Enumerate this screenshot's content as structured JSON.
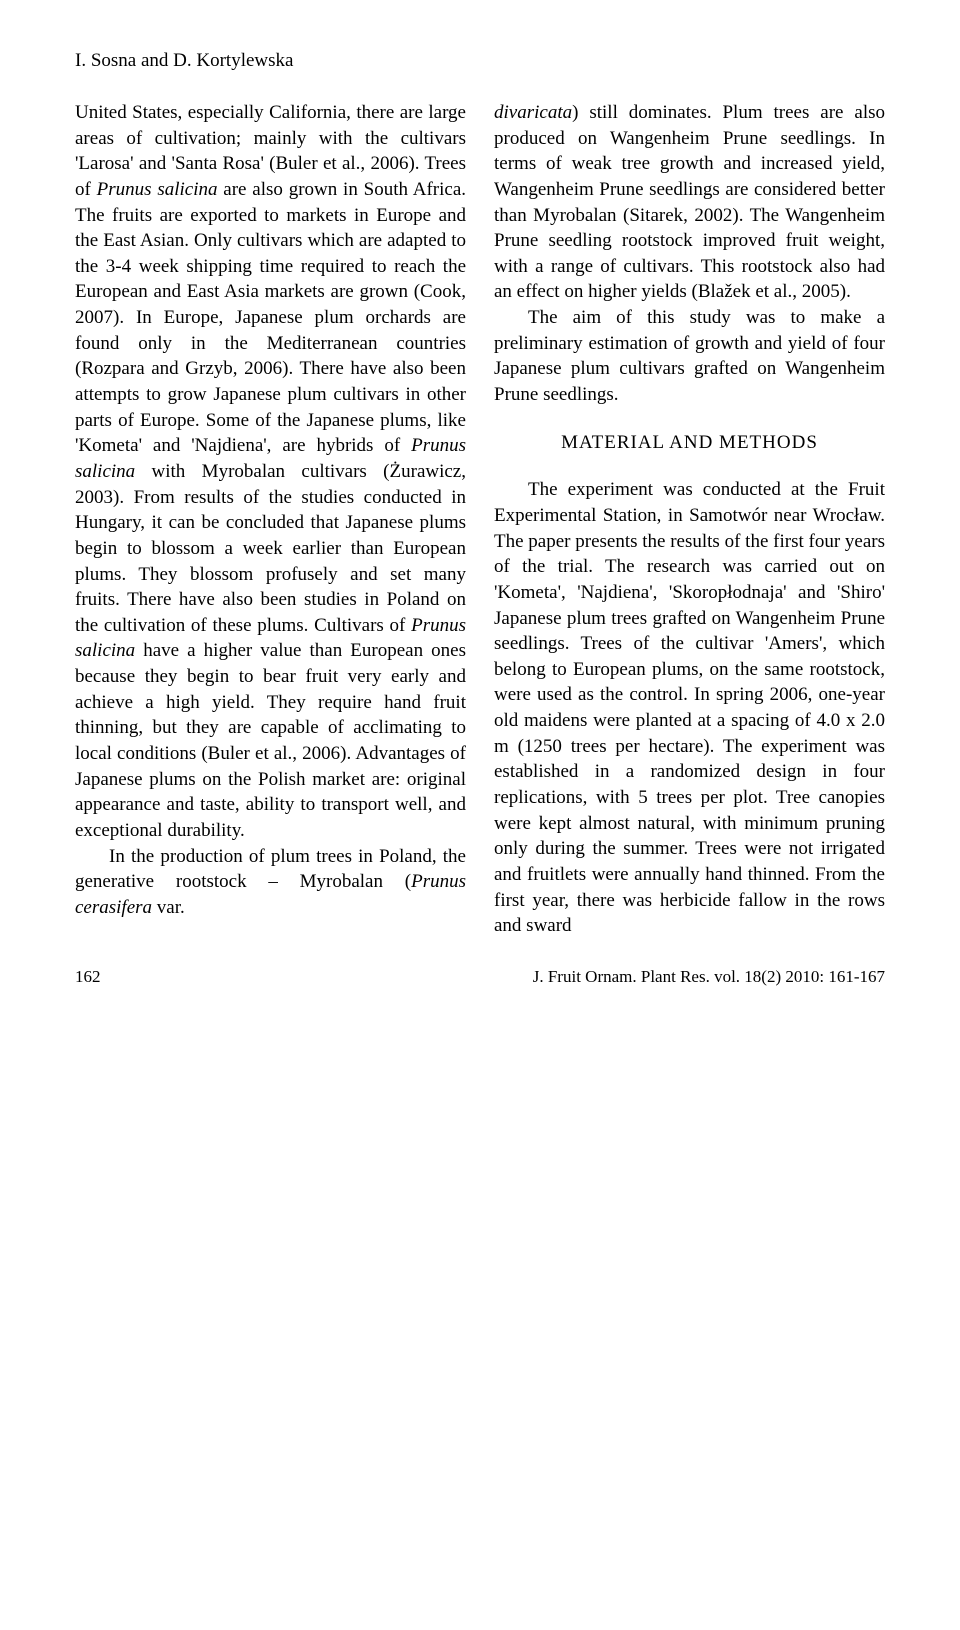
{
  "authors": "I. Sosna and D. Kortylewska",
  "col1_para1": "United States, especially California, there are large areas of cultivation; mainly with the cultivars 'Larosa' and 'Santa Rosa' (Buler et al., 2006). Trees of Prunus salicina are also grown in South Africa. The fruits are exported to markets in Europe and the East Asian. Only cultivars which are adapted to the 3-4 week shipping time required to reach the European and East Asia markets are grown (Cook, 2007). In Europe, Japanese plum orchards are found only in the Mediterranean countries (Rozpara and Grzyb, 2006). There have also been attempts to grow Japanese plum cultivars in other parts of Europe. Some of the Japanese plums, like 'Kometa' and 'Najdiena', are hybrids of Prunus salicina with Myrobalan cultivars (Żurawicz, 2003). From results of the studies conducted in Hungary, it can be concluded that Japanese plums begin to blossom a week earlier than European plums. They blossom profusely and set many fruits. There have also been studies in Poland on the cultivation of these plums. Cultivars of Prunus salicina have a higher value than European ones because they begin to bear fruit very early and achieve a high yield. They require hand fruit thinning, but they are capable of acclimating to local conditions (Buler et al., 2006). Advantages of Japanese plums on the Polish market are: original appearance and taste, ability to transport well, and exceptional durability.",
  "col1_para2": "In the production of plum trees in Poland, the generative rootstock – Myrobalan (Prunus cerasifera var.",
  "col2_para1": "divaricata) still dominates. Plum trees are also produced on Wangenheim Prune seedlings. In terms of weak tree growth and increased yield, Wangenheim Prune seedlings are considered better than Myrobalan (Sitarek, 2002). The Wangenheim Prune seedling rootstock improved fruit weight, with a range of cultivars. This rootstock also had an effect on higher yields (Blažek et al., 2005).",
  "col2_para2": "The aim of this study was to make a preliminary estimation of growth and yield of four Japanese plum cultivars grafted on Wangenheim Prune seedlings.",
  "section_heading": "MATERIAL AND METHODS",
  "col2_para3": "The experiment was conducted at the Fruit Experimental Station, in Samotwór near Wrocław. The paper presents the results of the first four years of the trial. The research was carried out on 'Kometa', 'Najdiena', 'Skoropłodnaja' and 'Shiro' Japanese plum trees grafted on Wangenheim Prune seedlings. Trees of the cultivar 'Amers', which belong to European plums, on the same rootstock, were used as the control. In spring 2006, one-year old maidens were planted at a spacing of 4.0 x 2.0 m (1250 trees per hectare). The experiment was established in a randomized design in four replications, with 5 trees per plot. Tree canopies were kept almost natural, with minimum pruning only during the summer. Trees were not irrigated and fruitlets were annually hand thinned. From the first year, there was herbicide fallow in the rows and sward",
  "page_number": "162",
  "journal_ref": "J. Fruit Ornam. Plant Res. vol. 18(2) 2010: 161-167"
}
